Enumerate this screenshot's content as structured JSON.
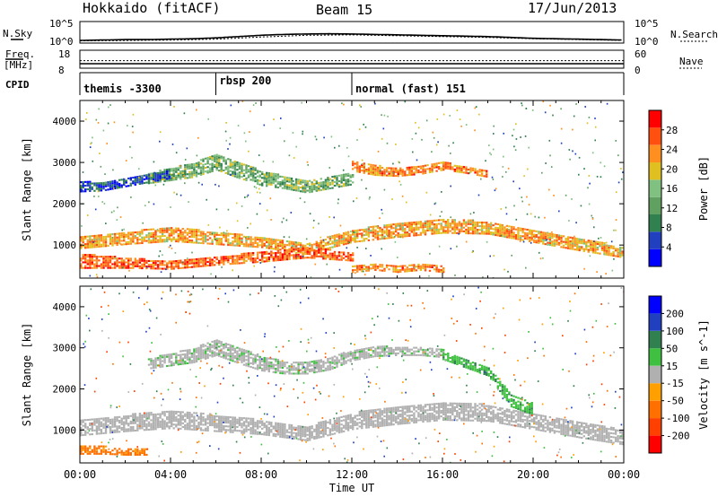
{
  "header": {
    "station": "Hokkaido (fitACF)",
    "beam": "Beam 15",
    "date": "17/Jun/2013"
  },
  "left_labels": {
    "nsky": "N.Sky",
    "freq_line1": "Freq.",
    "freq_line2": "[MHz]",
    "cpid": "CPID"
  },
  "right_labels": {
    "nsearch": "N.Search",
    "nave": "Nave"
  },
  "colors": {
    "power": [
      "#0000ff",
      "#2040c0",
      "#308050",
      "#60a060",
      "#80c080",
      "#e0c020",
      "#ff9020",
      "#ff5010",
      "#ff0000"
    ],
    "velocity": [
      "#0000ff",
      "#2040c0",
      "#308050",
      "#40c040",
      "#b0b0b0",
      "#ffa000",
      "#ff7000",
      "#ff4000",
      "#ff0000"
    ]
  },
  "chart_data": [
    {
      "type": "line",
      "panel": "noise",
      "y_ticks_left": [
        "10^5",
        "10^0"
      ],
      "y_ticks_right": [
        "10^5",
        "10^0"
      ],
      "series": [
        {
          "name": "N.Sky",
          "x_hours": [
            0,
            1,
            2,
            3,
            4,
            5,
            6,
            7,
            8,
            9,
            10,
            11,
            12,
            13,
            14,
            15,
            16,
            17,
            18,
            19,
            20,
            21,
            22,
            23,
            24
          ],
          "log10_values": [
            0.4,
            0.5,
            0.6,
            0.6,
            0.7,
            0.8,
            1.0,
            1.3,
            1.6,
            1.8,
            1.9,
            1.95,
            1.9,
            1.8,
            1.7,
            1.6,
            1.5,
            1.4,
            1.3,
            1.1,
            0.9,
            0.8,
            0.7,
            0.6,
            0.5
          ]
        },
        {
          "name": "N.Search",
          "x_hours": [
            0,
            2,
            4,
            6,
            8,
            10,
            12,
            14,
            16,
            18,
            20,
            22,
            24
          ],
          "log10_values": [
            0.3,
            0.4,
            0.5,
            0.7,
            1.2,
            1.6,
            1.7,
            1.5,
            1.3,
            1.1,
            0.8,
            0.6,
            0.4
          ]
        }
      ]
    },
    {
      "type": "line",
      "panel": "frequency",
      "y_ticks_left": [
        "18",
        "8"
      ],
      "y_ticks_right": [
        "60",
        "0"
      ],
      "series": [
        {
          "name": "Freq.",
          "x_hours": [
            0,
            24
          ],
          "values": [
            10.5,
            10.5
          ]
        },
        {
          "name": "Nave",
          "x_hours": [
            0,
            24
          ],
          "values": [
            25,
            25
          ]
        }
      ]
    },
    {
      "type": "table",
      "panel": "cpid",
      "segments": [
        {
          "label": "themis -3300",
          "start_hour": 0,
          "end_hour": 6.0
        },
        {
          "label": "rbsp 200",
          "start_hour": 6.0,
          "end_hour": 12.0
        },
        {
          "label": "normal (fast) 151",
          "start_hour": 12.0,
          "end_hour": 24.0
        }
      ]
    },
    {
      "type": "heatmap",
      "panel": "power",
      "ylabel": "Slant Range [km]",
      "ylim": [
        200,
        4500
      ],
      "y_ticks": [
        1000,
        2000,
        3000,
        4000
      ],
      "colorbar": {
        "label": "Power [dB]",
        "ticks": [
          4,
          8,
          12,
          16,
          20,
          24,
          28
        ],
        "range": [
          0,
          32
        ]
      },
      "echo_bands": [
        {
          "x_hours": [
            0,
            2,
            4,
            6,
            8,
            10,
            12,
            14,
            16,
            18,
            20,
            22,
            24
          ],
          "range_km": [
            1050,
            1150,
            1250,
            1150,
            1050,
            900,
            1200,
            1350,
            1450,
            1400,
            1200,
            1000,
            800
          ],
          "width_km": [
            300,
            300,
            350,
            300,
            250,
            250,
            300,
            350,
            350,
            300,
            300,
            300,
            250
          ],
          "power_db": 22
        },
        {
          "x_hours": [
            0,
            2,
            4,
            6,
            8,
            10,
            12
          ],
          "range_km": [
            600,
            550,
            500,
            600,
            700,
            800,
            700
          ],
          "width_km": [
            350,
            250,
            200,
            200,
            250,
            250,
            200
          ],
          "power_db": 26
        },
        {
          "x_hours": [
            12,
            13,
            14,
            15,
            16,
            17,
            18
          ],
          "range_km": [
            2900,
            2800,
            2750,
            2800,
            2900,
            2800,
            2700
          ],
          "width_km": [
            250,
            250,
            200,
            200,
            200,
            150,
            150
          ],
          "power_db": 24
        },
        {
          "x_hours": [
            3,
            4,
            5,
            6,
            7,
            8,
            9,
            10,
            11,
            12
          ],
          "range_km": [
            2600,
            2700,
            2800,
            3000,
            2800,
            2600,
            2500,
            2400,
            2500,
            2600
          ],
          "width_km": [
            250,
            300,
            350,
            400,
            400,
            350,
            300,
            300,
            300,
            300
          ],
          "power_db": 14
        },
        {
          "x_hours": [
            0,
            1,
            2,
            3,
            4
          ],
          "range_km": [
            2400,
            2400,
            2500,
            2600,
            2700
          ],
          "width_km": [
            250,
            200,
            200,
            200,
            200
          ],
          "power_db": 6
        },
        {
          "x_hours": [
            12,
            13,
            14,
            15,
            16
          ],
          "range_km": [
            400,
            450,
            400,
            450,
            400
          ],
          "width_km": [
            150,
            150,
            150,
            150,
            150
          ],
          "power_db": 24
        }
      ]
    },
    {
      "type": "heatmap",
      "panel": "velocity",
      "xlabel": "Time UT",
      "x_ticks": [
        "00:00",
        "04:00",
        "08:00",
        "12:00",
        "16:00",
        "20:00",
        "00:00"
      ],
      "xlim_hours": [
        0,
        24
      ],
      "ylabel": "Slant Range [km]",
      "ylim": [
        200,
        4500
      ],
      "y_ticks": [
        1000,
        2000,
        3000,
        4000
      ],
      "colorbar": {
        "label": "Velocity [m s^-1]",
        "ticks": [
          200,
          100,
          50,
          15,
          -15,
          -50,
          -100,
          -200
        ],
        "range": [
          -250,
          250
        ]
      },
      "echo_bands": [
        {
          "x_hours": [
            0,
            2,
            4,
            6,
            8,
            10,
            12,
            14,
            16,
            18,
            20,
            22,
            24
          ],
          "range_km": [
            1050,
            1150,
            1250,
            1150,
            1050,
            900,
            1200,
            1350,
            1450,
            1400,
            1200,
            1000,
            800
          ],
          "width_km": [
            400,
            400,
            450,
            400,
            350,
            350,
            400,
            450,
            450,
            400,
            400,
            400,
            350
          ],
          "velocity": 0
        },
        {
          "x_hours": [
            3,
            4,
            5,
            6,
            7,
            8,
            9,
            10,
            11,
            12,
            13,
            14,
            15,
            16
          ],
          "range_km": [
            2600,
            2700,
            2800,
            3000,
            2800,
            2600,
            2500,
            2500,
            2600,
            2800,
            2900,
            2900,
            2900,
            2850
          ],
          "width_km": [
            250,
            300,
            350,
            400,
            400,
            350,
            300,
            300,
            300,
            250,
            250,
            200,
            200,
            200
          ],
          "velocity": 5
        },
        {
          "x_hours": [
            16,
            17,
            18,
            19,
            20
          ],
          "range_km": [
            2800,
            2600,
            2400,
            1700,
            1500
          ],
          "width_km": [
            200,
            200,
            200,
            300,
            300
          ],
          "velocity": 40
        },
        {
          "x_hours": [
            0,
            1,
            2,
            3
          ],
          "range_km": [
            500,
            500,
            450,
            450
          ],
          "width_km": [
            200,
            200,
            150,
            150
          ],
          "velocity": -60
        }
      ]
    }
  ]
}
